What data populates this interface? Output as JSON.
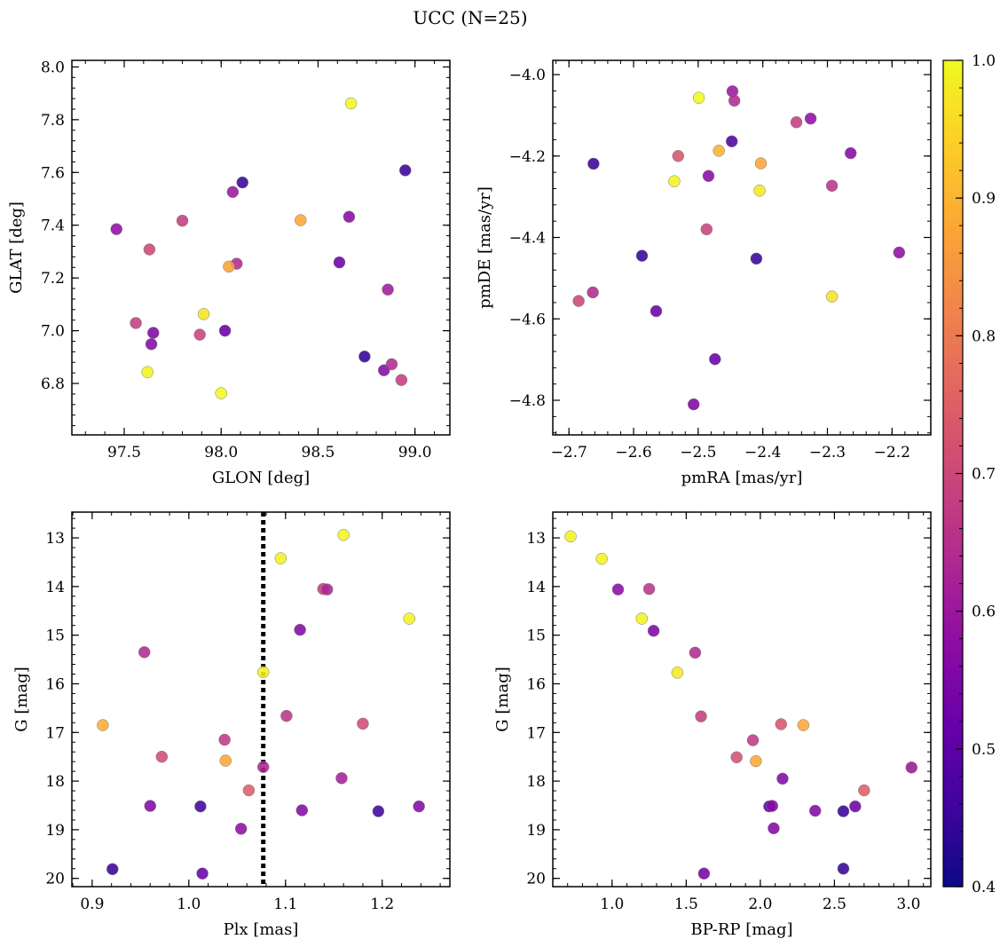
{
  "suptitle": "UCC (N=25)",
  "colorbar": {
    "colormap": "plasma",
    "vmin": 0.4,
    "vmax": 1.0,
    "ticks": [
      0.4,
      0.5,
      0.6,
      0.7,
      0.8,
      0.9,
      1.0
    ],
    "tick_labels": [
      "0.4",
      "0.5",
      "0.6",
      "0.7",
      "0.8",
      "0.9",
      "1.0"
    ]
  },
  "chart_data": [
    {
      "id": "glon_glat",
      "type": "scatter",
      "xlabel": "GLON [deg]",
      "ylabel": "GLAT [deg]",
      "xlim": [
        97.23,
        99.18
      ],
      "ylim": [
        6.605,
        8.025
      ],
      "y_inverted": false,
      "xticks": [
        97.5,
        98.0,
        98.5,
        99.0
      ],
      "xtick_labels": [
        "97.5",
        "98.0",
        "98.5",
        "99.0"
      ],
      "yticks": [
        6.8,
        7.0,
        7.2,
        7.4,
        7.6,
        7.8,
        8.0
      ],
      "ytick_labels": [
        "6.8",
        "7.0",
        "7.2",
        "7.4",
        "7.6",
        "7.8",
        "8.0"
      ],
      "x": [
        98.67,
        98.11,
        98.95,
        98.06,
        97.46,
        97.8,
        98.41,
        98.66,
        97.63,
        98.61,
        98.08,
        98.04,
        98.86,
        97.91,
        97.56,
        97.65,
        98.02,
        97.89,
        97.64,
        98.74,
        98.84,
        98.88,
        97.62,
        98.93,
        98.0
      ],
      "y": [
        7.862,
        7.562,
        7.608,
        7.526,
        7.385,
        7.417,
        7.419,
        7.432,
        7.308,
        7.259,
        7.254,
        7.243,
        7.156,
        7.063,
        7.029,
        6.992,
        7.0,
        6.985,
        6.949,
        6.902,
        6.85,
        6.873,
        6.843,
        6.813,
        6.763
      ],
      "color_values": [
        1.0,
        0.45,
        0.45,
        0.6,
        0.58,
        0.68,
        0.88,
        0.57,
        0.7,
        0.52,
        0.64,
        0.87,
        0.61,
        0.97,
        0.68,
        0.55,
        0.52,
        0.69,
        0.56,
        0.44,
        0.56,
        0.64,
        0.99,
        0.68,
        1.0
      ]
    },
    {
      "id": "pm",
      "type": "scatter",
      "xlabel": "pmRA [mas/yr]",
      "ylabel": "pmDE [mas/yr]",
      "xlim": [
        -2.725,
        -2.14
      ],
      "ylim": [
        -4.885,
        -3.965
      ],
      "y_inverted": false,
      "xticks": [
        -2.7,
        -2.6,
        -2.5,
        -2.4,
        -2.3,
        -2.2
      ],
      "xtick_labels": [
        "−2.7",
        "−2.6",
        "−2.5",
        "−2.4",
        "−2.3",
        "−2.2"
      ],
      "yticks": [
        -4.8,
        -4.6,
        -4.4,
        -4.2,
        -4.0
      ],
      "ytick_labels": [
        "−4.8",
        "−4.6",
        "−4.4",
        "−4.2",
        "−4.0"
      ],
      "x": [
        -2.499,
        -2.447,
        -2.444,
        -2.348,
        -2.326,
        -2.448,
        -2.662,
        -2.531,
        -2.468,
        -2.403,
        -2.264,
        -2.537,
        -2.484,
        -2.405,
        -2.293,
        -2.487,
        -2.587,
        -2.41,
        -2.189,
        -2.685,
        -2.663,
        -2.565,
        -2.293,
        -2.474,
        -2.507
      ],
      "y": [
        -4.057,
        -4.041,
        -4.064,
        -4.117,
        -4.108,
        -4.164,
        -4.219,
        -4.2,
        -4.187,
        -4.218,
        -4.193,
        -4.262,
        -4.249,
        -4.285,
        -4.273,
        -4.38,
        -4.445,
        -4.452,
        -4.437,
        -4.556,
        -4.535,
        -4.581,
        -4.545,
        -4.699,
        -4.81
      ],
      "color_values": [
        1.0,
        0.6,
        0.64,
        0.68,
        0.58,
        0.48,
        0.45,
        0.73,
        0.9,
        0.88,
        0.56,
        0.99,
        0.57,
        0.98,
        0.66,
        0.69,
        0.45,
        0.45,
        0.58,
        0.7,
        0.64,
        0.52,
        0.97,
        0.52,
        0.55
      ]
    },
    {
      "id": "plx_g",
      "type": "scatter",
      "xlabel": "Plx [mas]",
      "ylabel": "G [mag]",
      "xlim": [
        0.879,
        1.27
      ],
      "ylim": [
        20.17,
        12.47
      ],
      "y_inverted": true,
      "xticks": [
        0.9,
        1.0,
        1.1,
        1.2
      ],
      "xtick_labels": [
        "0.9",
        "1.0",
        "1.1",
        "1.2"
      ],
      "yticks": [
        13,
        14,
        15,
        16,
        17,
        18,
        19,
        20
      ],
      "ytick_labels": [
        "13",
        "14",
        "15",
        "16",
        "17",
        "18",
        "19",
        "20"
      ],
      "reference_line": {
        "axis": "x",
        "value": 1.077,
        "style": "dotted",
        "color": "#000000"
      },
      "x": [
        1.16,
        1.095,
        1.139,
        1.143,
        1.228,
        1.115,
        0.954,
        1.077,
        0.911,
        1.101,
        1.18,
        0.972,
        1.037,
        1.038,
        1.077,
        1.158,
        1.062,
        0.96,
        1.012,
        1.117,
        1.196,
        1.238,
        1.054,
        0.921,
        1.014
      ],
      "y": [
        12.94,
        13.42,
        14.05,
        14.06,
        14.66,
        14.89,
        15.35,
        15.76,
        16.85,
        16.66,
        16.82,
        17.5,
        17.15,
        17.58,
        17.71,
        17.94,
        18.19,
        18.51,
        18.52,
        18.6,
        18.62,
        18.52,
        18.98,
        19.81,
        19.9
      ],
      "color_values": [
        0.99,
        0.99,
        0.68,
        0.63,
        0.99,
        0.56,
        0.64,
        0.99,
        0.89,
        0.66,
        0.71,
        0.71,
        0.67,
        0.88,
        0.63,
        0.62,
        0.75,
        0.56,
        0.46,
        0.56,
        0.46,
        0.56,
        0.58,
        0.45,
        0.52
      ]
    },
    {
      "id": "cmd",
      "type": "scatter",
      "xlabel": "BP-RP [mag]",
      "ylabel": "G [mag]",
      "xlim": [
        0.6,
        3.15
      ],
      "ylim": [
        20.17,
        12.47
      ],
      "y_inverted": true,
      "xticks": [
        1.0,
        1.5,
        2.0,
        2.5,
        3.0
      ],
      "xtick_labels": [
        "1.0",
        "1.5",
        "2.0",
        "2.5",
        "3.0"
      ],
      "yticks": [
        13,
        14,
        15,
        16,
        17,
        18,
        19,
        20
      ],
      "ytick_labels": [
        "13",
        "14",
        "15",
        "16",
        "17",
        "18",
        "19",
        "20"
      ],
      "x": [
        0.72,
        0.93,
        1.04,
        1.25,
        1.2,
        1.28,
        1.56,
        1.44,
        1.6,
        2.14,
        2.29,
        1.84,
        1.95,
        1.97,
        3.02,
        2.15,
        2.7,
        2.06,
        2.08,
        2.37,
        2.56,
        2.64,
        2.09,
        2.56,
        1.62
      ],
      "y": [
        12.97,
        13.43,
        14.06,
        14.05,
        14.66,
        14.91,
        15.36,
        15.77,
        16.67,
        16.83,
        16.85,
        17.51,
        17.16,
        17.59,
        17.72,
        17.95,
        18.19,
        18.52,
        18.51,
        18.61,
        18.62,
        18.52,
        18.97,
        19.8,
        19.9
      ],
      "color_values": [
        0.99,
        0.99,
        0.57,
        0.66,
        0.99,
        0.55,
        0.64,
        0.98,
        0.68,
        0.73,
        0.88,
        0.72,
        0.67,
        0.88,
        0.6,
        0.56,
        0.75,
        0.5,
        0.56,
        0.56,
        0.45,
        0.52,
        0.56,
        0.45,
        0.54
      ]
    }
  ]
}
